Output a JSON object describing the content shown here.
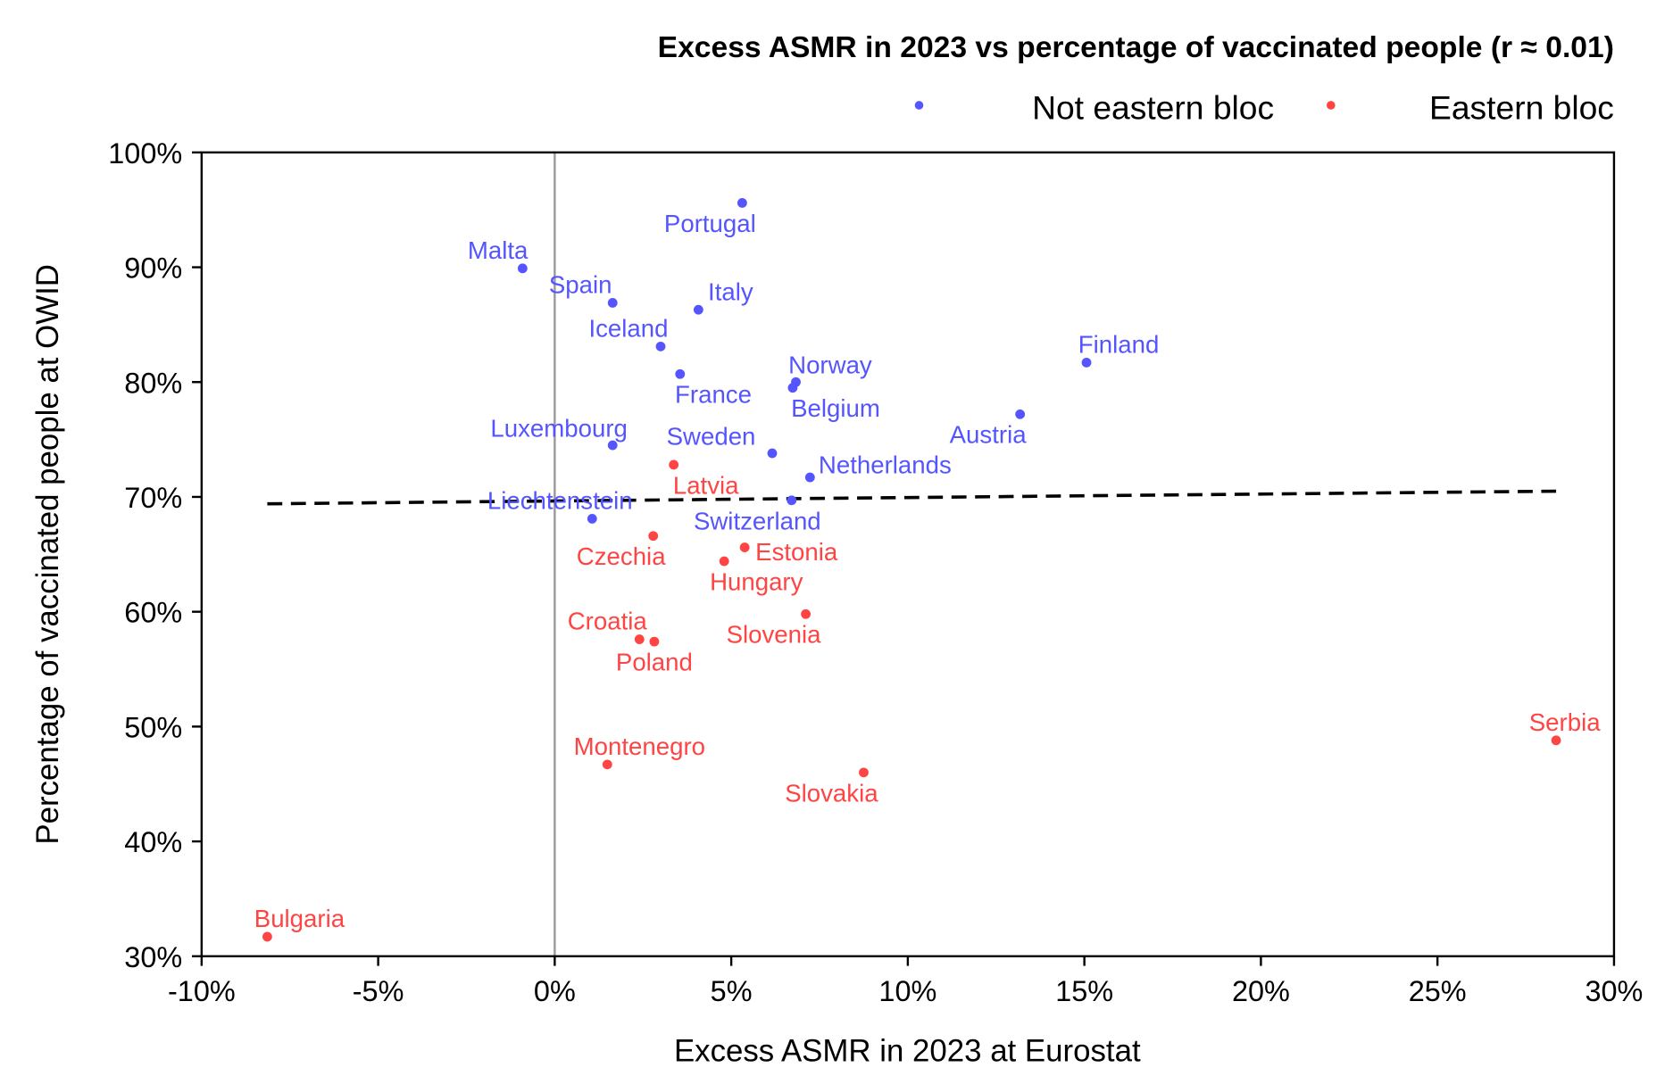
{
  "chart_data": {
    "type": "scatter",
    "title": "Excess ASMR in 2023 vs percentage of vaccinated people (r ≈ 0.01)",
    "xlabel": "Excess ASMR in 2023 at Eurostat",
    "ylabel": "Percentage of vaccinated people at OWID",
    "xlim": [
      -10,
      30
    ],
    "ylim": [
      30,
      100
    ],
    "xticks": [
      -10,
      -5,
      0,
      5,
      10,
      15,
      20,
      25,
      30
    ],
    "xtick_labels": [
      "-10%",
      "-5%",
      "0%",
      "5%",
      "10%",
      "15%",
      "20%",
      "25%",
      "30%"
    ],
    "yticks": [
      30,
      40,
      50,
      60,
      70,
      80,
      90,
      100
    ],
    "ytick_labels": [
      "30%",
      "40%",
      "50%",
      "60%",
      "70%",
      "80%",
      "90%",
      "100%"
    ],
    "grid": false,
    "legend_position": "top-right",
    "trendline": {
      "x": [
        -8.14,
        28.36
      ],
      "y": [
        69.4,
        70.5
      ],
      "style": "dashed"
    },
    "series": [
      {
        "name": "Not eastern bloc",
        "color": "#5555ff",
        "points": [
          {
            "label": "Portugal",
            "x": 5.31,
            "y": 95.6
          },
          {
            "label": "Malta",
            "x": -0.91,
            "y": 89.9
          },
          {
            "label": "Spain",
            "x": 1.64,
            "y": 86.9
          },
          {
            "label": "Italy",
            "x": 4.07,
            "y": 86.3
          },
          {
            "label": "Iceland",
            "x": 3.0,
            "y": 83.1
          },
          {
            "label": "France",
            "x": 3.55,
            "y": 80.7
          },
          {
            "label": "Norway",
            "x": 6.83,
            "y": 80.0
          },
          {
            "label": "Belgium",
            "x": 6.74,
            "y": 79.5
          },
          {
            "label": "Finland",
            "x": 15.06,
            "y": 81.7
          },
          {
            "label": "Austria",
            "x": 13.18,
            "y": 77.2
          },
          {
            "label": "Luxembourg",
            "x": 1.64,
            "y": 74.5
          },
          {
            "label": "Sweden",
            "x": 6.16,
            "y": 73.8
          },
          {
            "label": "Netherlands",
            "x": 7.23,
            "y": 71.7
          },
          {
            "label": "Switzerland",
            "x": 6.71,
            "y": 69.7
          },
          {
            "label": "Liechtenstein",
            "x": 1.06,
            "y": 68.1
          }
        ]
      },
      {
        "name": "Eastern bloc",
        "color": "#ff4444",
        "points": [
          {
            "label": "Latvia",
            "x": 3.37,
            "y": 72.8
          },
          {
            "label": "Czechia",
            "x": 2.79,
            "y": 66.6
          },
          {
            "label": "Estonia",
            "x": 5.38,
            "y": 65.6
          },
          {
            "label": "Hungary",
            "x": 4.8,
            "y": 64.4
          },
          {
            "label": "Slovenia",
            "x": 7.11,
            "y": 59.8
          },
          {
            "label": "Croatia",
            "x": 2.4,
            "y": 57.6
          },
          {
            "label": "Poland",
            "x": 2.82,
            "y": 57.4
          },
          {
            "label": "Montenegro",
            "x": 1.49,
            "y": 46.7
          },
          {
            "label": "Slovakia",
            "x": 8.75,
            "y": 46.0
          },
          {
            "label": "Serbia",
            "x": 28.36,
            "y": 48.8
          },
          {
            "label": "Bulgaria",
            "x": -8.14,
            "y": 31.7
          }
        ]
      }
    ]
  }
}
